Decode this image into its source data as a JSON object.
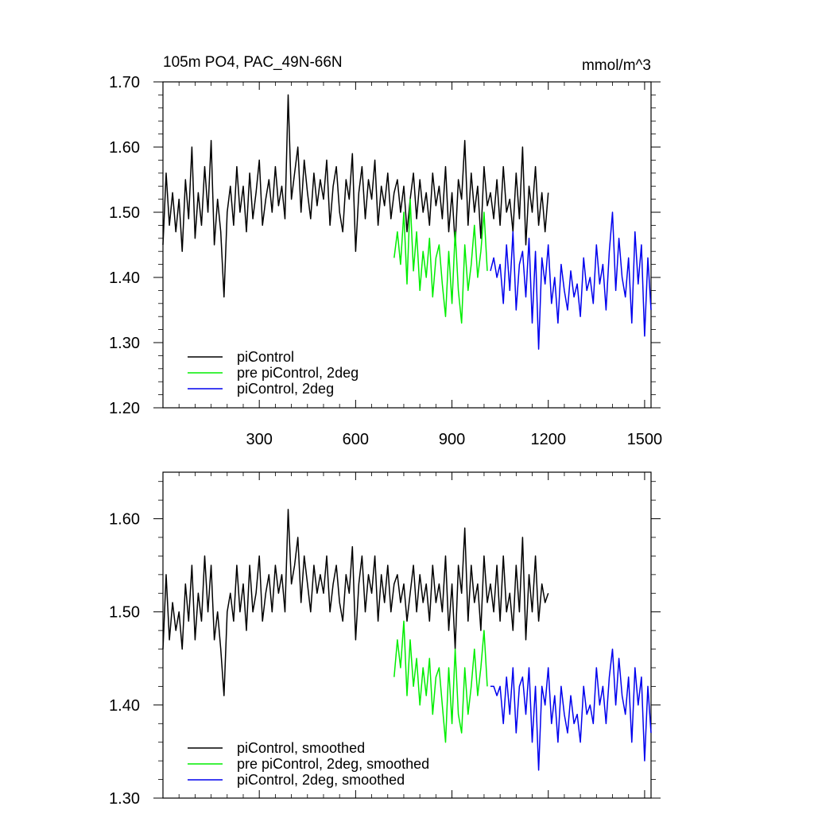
{
  "chart_data": [
    {
      "type": "line",
      "title_left": "105m PO4, PAC_49N-66N",
      "title_right": "mmol/m^3",
      "xlim": [
        0,
        1520
      ],
      "ylim": [
        1.2,
        1.7
      ],
      "x_ticks": [
        300,
        600,
        900,
        1200,
        1500
      ],
      "x_tick_labels": [
        "300",
        "600",
        "900",
        "1200",
        "1500"
      ],
      "y_ticks": [
        1.2,
        1.3,
        1.4,
        1.5,
        1.6,
        1.7
      ],
      "y_tick_labels": [
        "1.20",
        "1.30",
        "1.40",
        "1.50",
        "1.60",
        "1.70"
      ],
      "legend_placement": "bottom-left",
      "series": [
        {
          "name": "piControl",
          "color": "#000000",
          "x": [
            0,
            10,
            20,
            30,
            40,
            50,
            60,
            70,
            80,
            90,
            100,
            110,
            120,
            130,
            140,
            150,
            160,
            170,
            180,
            190,
            200,
            210,
            220,
            230,
            240,
            250,
            260,
            270,
            280,
            290,
            300,
            310,
            320,
            330,
            340,
            350,
            360,
            370,
            380,
            390,
            400,
            410,
            420,
            430,
            440,
            450,
            460,
            470,
            480,
            490,
            500,
            510,
            520,
            530,
            540,
            550,
            560,
            570,
            580,
            590,
            600,
            610,
            620,
            630,
            640,
            650,
            660,
            670,
            680,
            690,
            700,
            710,
            720,
            730,
            740,
            750,
            760,
            770,
            780,
            790,
            800,
            810,
            820,
            830,
            840,
            850,
            860,
            870,
            880,
            890,
            900,
            910,
            920,
            930,
            940,
            950,
            960,
            970,
            980,
            990,
            1000,
            1010,
            1020,
            1030,
            1040,
            1050,
            1060,
            1070,
            1080,
            1090,
            1100,
            1110,
            1120,
            1130,
            1140,
            1150,
            1160,
            1170,
            1180,
            1190,
            1200
          ],
          "y": [
            1.45,
            1.56,
            1.48,
            1.53,
            1.47,
            1.52,
            1.44,
            1.55,
            1.49,
            1.6,
            1.46,
            1.53,
            1.48,
            1.57,
            1.5,
            1.61,
            1.45,
            1.52,
            1.47,
            1.37,
            1.5,
            1.54,
            1.48,
            1.57,
            1.5,
            1.54,
            1.47,
            1.56,
            1.49,
            1.53,
            1.58,
            1.48,
            1.52,
            1.55,
            1.5,
            1.57,
            1.51,
            1.54,
            1.49,
            1.68,
            1.52,
            1.56,
            1.6,
            1.5,
            1.58,
            1.53,
            1.49,
            1.56,
            1.51,
            1.55,
            1.52,
            1.58,
            1.48,
            1.54,
            1.57,
            1.5,
            1.47,
            1.55,
            1.52,
            1.59,
            1.44,
            1.53,
            1.57,
            1.49,
            1.55,
            1.52,
            1.58,
            1.48,
            1.54,
            1.51,
            1.56,
            1.49,
            1.53,
            1.55,
            1.5,
            1.54,
            1.47,
            1.52,
            1.56,
            1.49,
            1.55,
            1.5,
            1.53,
            1.48,
            1.56,
            1.51,
            1.54,
            1.49,
            1.57,
            1.47,
            1.53,
            1.45,
            1.55,
            1.52,
            1.61,
            1.48,
            1.56,
            1.5,
            1.54,
            1.46,
            1.57,
            1.51,
            1.53,
            1.49,
            1.55,
            1.48,
            1.57,
            1.5,
            1.52,
            1.47,
            1.56,
            1.49,
            1.6,
            1.45,
            1.54,
            1.5,
            1.57,
            1.48,
            1.53,
            1.47,
            1.53
          ]
        },
        {
          "name": "pre piControl, 2deg",
          "color": "#00ee00",
          "x": [
            720,
            730,
            740,
            750,
            760,
            770,
            780,
            790,
            800,
            810,
            820,
            830,
            840,
            850,
            860,
            870,
            880,
            890,
            900,
            910,
            920,
            930,
            940,
            950,
            960,
            970,
            980,
            990,
            1000,
            1010
          ],
          "y": [
            1.43,
            1.47,
            1.42,
            1.5,
            1.39,
            1.52,
            1.41,
            1.47,
            1.38,
            1.44,
            1.4,
            1.46,
            1.37,
            1.43,
            1.45,
            1.39,
            1.34,
            1.44,
            1.36,
            1.47,
            1.38,
            1.33,
            1.45,
            1.38,
            1.42,
            1.48,
            1.4,
            1.44,
            1.5,
            1.41
          ]
        },
        {
          "name": "piControl, 2deg",
          "color": "#0000ee",
          "x": [
            1020,
            1030,
            1040,
            1050,
            1060,
            1070,
            1080,
            1090,
            1100,
            1110,
            1120,
            1130,
            1140,
            1150,
            1160,
            1170,
            1180,
            1190,
            1200,
            1210,
            1220,
            1230,
            1240,
            1250,
            1260,
            1270,
            1280,
            1290,
            1300,
            1310,
            1320,
            1330,
            1340,
            1350,
            1360,
            1370,
            1380,
            1390,
            1400,
            1410,
            1420,
            1430,
            1440,
            1450,
            1460,
            1470,
            1480,
            1490,
            1500,
            1510,
            1520
          ],
          "y": [
            1.41,
            1.43,
            1.4,
            1.42,
            1.36,
            1.45,
            1.38,
            1.47,
            1.35,
            1.42,
            1.44,
            1.37,
            1.46,
            1.33,
            1.44,
            1.29,
            1.43,
            1.39,
            1.45,
            1.36,
            1.4,
            1.33,
            1.42,
            1.38,
            1.35,
            1.41,
            1.37,
            1.39,
            1.34,
            1.43,
            1.38,
            1.4,
            1.36,
            1.45,
            1.39,
            1.42,
            1.35,
            1.44,
            1.5,
            1.38,
            1.46,
            1.4,
            1.37,
            1.43,
            1.33,
            1.47,
            1.39,
            1.45,
            1.31,
            1.43,
            1.35
          ]
        }
      ]
    },
    {
      "type": "line",
      "xlim": [
        0,
        1520
      ],
      "ylim": [
        1.3,
        1.65
      ],
      "x_ticks": [
        300,
        600,
        900,
        1200,
        1500
      ],
      "y_ticks": [
        1.3,
        1.4,
        1.5,
        1.6
      ],
      "y_tick_labels": [
        "1.30",
        "1.40",
        "1.50",
        "1.60"
      ],
      "legend_placement": "bottom-left",
      "series": [
        {
          "name": "piControl, smoothed",
          "color": "#000000",
          "x": [
            0,
            10,
            20,
            30,
            40,
            50,
            60,
            70,
            80,
            90,
            100,
            110,
            120,
            130,
            140,
            150,
            160,
            170,
            180,
            190,
            200,
            210,
            220,
            230,
            240,
            250,
            260,
            270,
            280,
            290,
            300,
            310,
            320,
            330,
            340,
            350,
            360,
            370,
            380,
            390,
            400,
            410,
            420,
            430,
            440,
            450,
            460,
            470,
            480,
            490,
            500,
            510,
            520,
            530,
            540,
            550,
            560,
            570,
            580,
            590,
            600,
            610,
            620,
            630,
            640,
            650,
            660,
            670,
            680,
            690,
            700,
            710,
            720,
            730,
            740,
            750,
            760,
            770,
            780,
            790,
            800,
            810,
            820,
            830,
            840,
            850,
            860,
            870,
            880,
            890,
            900,
            910,
            920,
            930,
            940,
            950,
            960,
            970,
            980,
            990,
            1000,
            1010,
            1020,
            1030,
            1040,
            1050,
            1060,
            1070,
            1080,
            1090,
            1100,
            1110,
            1120,
            1130,
            1140,
            1150,
            1160,
            1170,
            1180,
            1190,
            1200
          ],
          "y": [
            1.46,
            1.54,
            1.47,
            1.51,
            1.48,
            1.5,
            1.46,
            1.53,
            1.49,
            1.55,
            1.47,
            1.52,
            1.49,
            1.56,
            1.5,
            1.55,
            1.47,
            1.5,
            1.46,
            1.41,
            1.5,
            1.52,
            1.49,
            1.55,
            1.5,
            1.53,
            1.48,
            1.55,
            1.5,
            1.52,
            1.56,
            1.49,
            1.52,
            1.54,
            1.5,
            1.55,
            1.52,
            1.54,
            1.5,
            1.61,
            1.53,
            1.55,
            1.58,
            1.51,
            1.56,
            1.53,
            1.5,
            1.55,
            1.52,
            1.54,
            1.52,
            1.56,
            1.5,
            1.53,
            1.55,
            1.51,
            1.49,
            1.54,
            1.52,
            1.57,
            1.47,
            1.53,
            1.56,
            1.5,
            1.54,
            1.52,
            1.56,
            1.49,
            1.54,
            1.51,
            1.55,
            1.5,
            1.53,
            1.54,
            1.51,
            1.53,
            1.49,
            1.52,
            1.55,
            1.5,
            1.54,
            1.51,
            1.53,
            1.49,
            1.55,
            1.51,
            1.53,
            1.5,
            1.56,
            1.48,
            1.53,
            1.46,
            1.55,
            1.52,
            1.59,
            1.49,
            1.55,
            1.51,
            1.53,
            1.48,
            1.56,
            1.51,
            1.53,
            1.5,
            1.55,
            1.49,
            1.56,
            1.5,
            1.52,
            1.48,
            1.55,
            1.5,
            1.58,
            1.47,
            1.54,
            1.5,
            1.56,
            1.49,
            1.53,
            1.51,
            1.52
          ]
        },
        {
          "name": "pre piControl, 2deg, smoothed",
          "color": "#00ee00",
          "x": [
            720,
            730,
            740,
            750,
            760,
            770,
            780,
            790,
            800,
            810,
            820,
            830,
            840,
            850,
            860,
            870,
            880,
            890,
            900,
            910,
            920,
            930,
            940,
            950,
            960,
            970,
            980,
            990,
            1000,
            1010
          ],
          "y": [
            1.43,
            1.47,
            1.44,
            1.49,
            1.41,
            1.47,
            1.42,
            1.45,
            1.4,
            1.44,
            1.41,
            1.45,
            1.39,
            1.43,
            1.44,
            1.4,
            1.36,
            1.44,
            1.38,
            1.46,
            1.39,
            1.37,
            1.44,
            1.39,
            1.42,
            1.46,
            1.41,
            1.44,
            1.48,
            1.42
          ]
        },
        {
          "name": "piControl, 2deg, smoothed",
          "color": "#0000ee",
          "x": [
            1020,
            1030,
            1040,
            1050,
            1060,
            1070,
            1080,
            1090,
            1100,
            1110,
            1120,
            1130,
            1140,
            1150,
            1160,
            1170,
            1180,
            1190,
            1200,
            1210,
            1220,
            1230,
            1240,
            1250,
            1260,
            1270,
            1280,
            1290,
            1300,
            1310,
            1320,
            1330,
            1340,
            1350,
            1360,
            1370,
            1380,
            1390,
            1400,
            1410,
            1420,
            1430,
            1440,
            1450,
            1460,
            1470,
            1480,
            1490,
            1500,
            1510,
            1520
          ],
          "y": [
            1.42,
            1.42,
            1.41,
            1.42,
            1.38,
            1.43,
            1.39,
            1.44,
            1.37,
            1.42,
            1.43,
            1.39,
            1.44,
            1.36,
            1.42,
            1.33,
            1.42,
            1.4,
            1.44,
            1.38,
            1.41,
            1.36,
            1.42,
            1.39,
            1.37,
            1.41,
            1.38,
            1.39,
            1.36,
            1.42,
            1.39,
            1.4,
            1.38,
            1.44,
            1.4,
            1.42,
            1.38,
            1.43,
            1.46,
            1.4,
            1.45,
            1.41,
            1.39,
            1.43,
            1.36,
            1.44,
            1.4,
            1.43,
            1.34,
            1.42,
            1.37
          ]
        }
      ]
    }
  ]
}
